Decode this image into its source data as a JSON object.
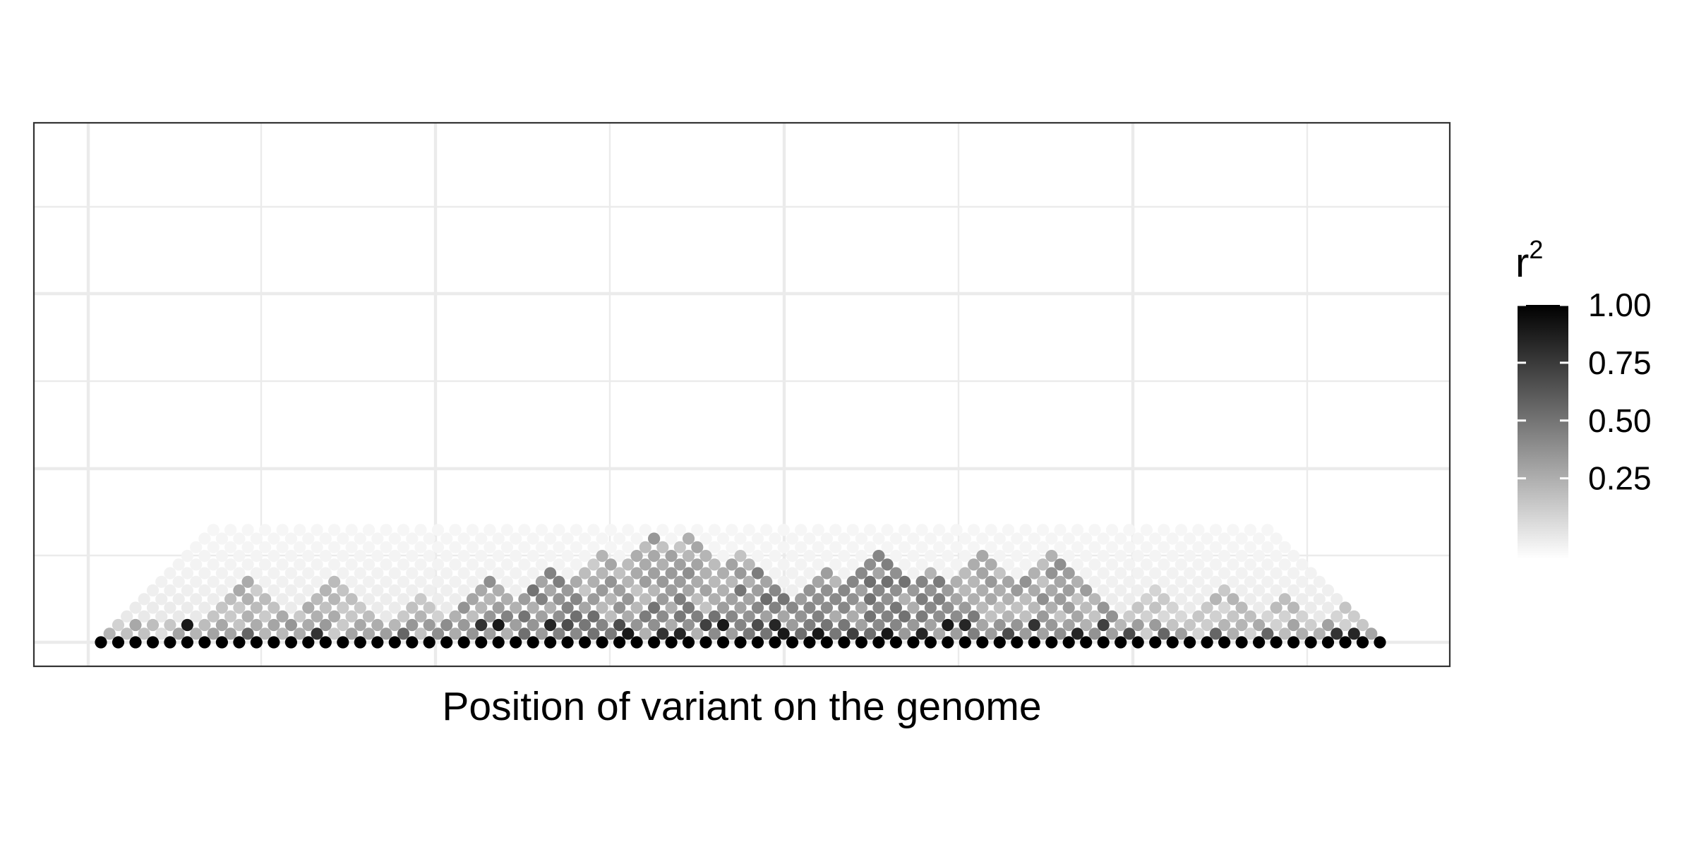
{
  "chart_data": {
    "type": "heatmap",
    "subtype": "linkage-disequilibrium-triangle",
    "title": "",
    "xlabel": "Position of variant on the genome",
    "ylabel": "",
    "n_variants": 75,
    "grid": true,
    "background": "#ffffff",
    "legend": {
      "title": "r",
      "title_superscript": "2",
      "placement": "right",
      "colormap": [
        "#ffffff",
        "#000000"
      ],
      "range": [
        0,
        1
      ],
      "ticks": [
        1.0,
        0.75,
        0.5,
        0.25
      ],
      "tick_labels": [
        "1.00",
        "0.75",
        "0.50",
        "0.25"
      ]
    },
    "ld_blocks": [
      {
        "start": 5,
        "end": 12,
        "r2": 0.35
      },
      {
        "start": 10,
        "end": 17,
        "r2": 0.32
      },
      {
        "start": 16,
        "end": 21,
        "r2": 0.3
      },
      {
        "start": 19,
        "end": 26,
        "r2": 0.45
      },
      {
        "start": 22,
        "end": 30,
        "r2": 0.55
      },
      {
        "start": 24,
        "end": 34,
        "r2": 0.35
      },
      {
        "start": 26,
        "end": 38,
        "r2": 0.42
      },
      {
        "start": 28,
        "end": 40,
        "r2": 0.35
      },
      {
        "start": 30,
        "end": 36,
        "r2": 0.55
      },
      {
        "start": 32,
        "end": 42,
        "r2": 0.4
      },
      {
        "start": 34,
        "end": 42,
        "r2": 0.55
      },
      {
        "start": 38,
        "end": 46,
        "r2": 0.5
      },
      {
        "start": 40,
        "end": 50,
        "r2": 0.55
      },
      {
        "start": 42,
        "end": 50,
        "r2": 0.3
      },
      {
        "start": 44,
        "end": 52,
        "r2": 0.5
      },
      {
        "start": 46,
        "end": 56,
        "r2": 0.4
      },
      {
        "start": 50,
        "end": 60,
        "r2": 0.42
      },
      {
        "start": 54,
        "end": 60,
        "r2": 0.35
      },
      {
        "start": 58,
        "end": 64,
        "r2": 0.25
      },
      {
        "start": 62,
        "end": 68,
        "r2": 0.28
      },
      {
        "start": 66,
        "end": 71,
        "r2": 0.3
      },
      {
        "start": 70,
        "end": 74,
        "r2": 0.3
      }
    ],
    "ld_strong_pairs": [
      [
        4,
        6,
        0.9
      ],
      [
        8,
        9,
        0.6
      ],
      [
        12,
        13,
        0.8
      ],
      [
        17,
        18,
        0.6
      ],
      [
        21,
        23,
        0.8
      ],
      [
        22,
        24,
        0.9
      ],
      [
        25,
        27,
        0.85
      ],
      [
        26,
        28,
        0.7
      ],
      [
        29,
        31,
        0.7
      ],
      [
        30,
        31,
        0.9
      ],
      [
        32,
        33,
        0.8
      ],
      [
        33,
        34,
        0.85
      ],
      [
        34,
        36,
        0.75
      ],
      [
        35,
        37,
        0.9
      ],
      [
        37,
        39,
        0.7
      ],
      [
        38,
        40,
        0.85
      ],
      [
        39,
        40,
        0.9
      ],
      [
        41,
        42,
        0.9
      ],
      [
        43,
        44,
        0.75
      ],
      [
        45,
        46,
        0.9
      ],
      [
        47,
        48,
        0.85
      ],
      [
        48,
        50,
        0.9
      ],
      [
        49,
        51,
        0.85
      ],
      [
        52,
        53,
        0.7
      ],
      [
        53,
        55,
        0.8
      ],
      [
        56,
        57,
        0.85
      ],
      [
        57,
        59,
        0.75
      ],
      [
        59,
        60,
        0.7
      ],
      [
        61,
        62,
        0.6
      ],
      [
        64,
        65,
        0.6
      ],
      [
        67,
        68,
        0.6
      ],
      [
        71,
        72,
        0.8
      ],
      [
        72,
        73,
        0.85
      ]
    ]
  }
}
